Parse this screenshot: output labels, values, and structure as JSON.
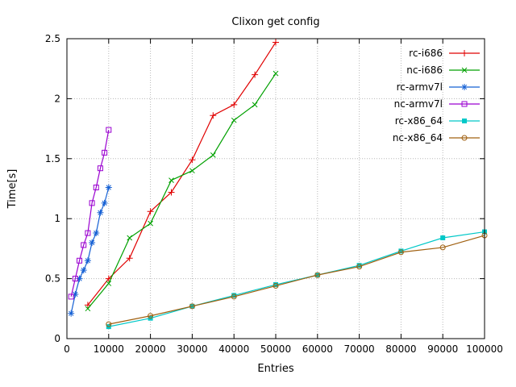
{
  "chart_data": {
    "type": "line",
    "title": "Clixon get config",
    "xlabel": "Entries",
    "ylabel": "Time[s]",
    "xlim": [
      0,
      100000
    ],
    "ylim": [
      0,
      2.5
    ],
    "xticks": [
      0,
      10000,
      20000,
      30000,
      40000,
      50000,
      60000,
      70000,
      80000,
      90000,
      100000
    ],
    "xtick_labels": [
      "0",
      "10000",
      "20000",
      "30000",
      "40000",
      "50000",
      "60000",
      "70000",
      "80000",
      "90000",
      "100000"
    ],
    "yticks": [
      0,
      0.5,
      1,
      1.5,
      2,
      2.5
    ],
    "ytick_labels": [
      "0",
      "0.5",
      "1",
      "1.5",
      "2",
      "2.5"
    ],
    "grid": true,
    "legend_position": "top-right-inside",
    "series": [
      {
        "name": "rc-i686",
        "color": "#e00000",
        "marker": "plus",
        "x": [
          5000,
          10000,
          15000,
          20000,
          25000,
          30000,
          35000,
          40000,
          45000,
          50000
        ],
        "y": [
          0.28,
          0.5,
          0.67,
          1.06,
          1.22,
          1.49,
          1.86,
          1.95,
          2.2,
          2.47
        ]
      },
      {
        "name": "nc-i686",
        "color": "#00a000",
        "marker": "cross",
        "x": [
          5000,
          10000,
          15000,
          20000,
          25000,
          30000,
          35000,
          40000,
          45000,
          50000
        ],
        "y": [
          0.25,
          0.46,
          0.84,
          0.96,
          1.32,
          1.4,
          1.53,
          1.82,
          1.95,
          2.21
        ]
      },
      {
        "name": "rc-armv7l",
        "color": "#1560d4",
        "marker": "asterisk",
        "x": [
          1000,
          2000,
          3000,
          4000,
          5000,
          6000,
          7000,
          8000,
          9000,
          10000
        ],
        "y": [
          0.21,
          0.37,
          0.5,
          0.57,
          0.65,
          0.8,
          0.88,
          1.05,
          1.13,
          1.26
        ]
      },
      {
        "name": "nc-armv7l",
        "color": "#9a00d0",
        "marker": "square-open",
        "x": [
          1000,
          2000,
          3000,
          4000,
          5000,
          6000,
          7000,
          8000,
          9000,
          10000
        ],
        "y": [
          0.35,
          0.5,
          0.65,
          0.78,
          0.88,
          1.13,
          1.26,
          1.42,
          1.55,
          1.74
        ]
      },
      {
        "name": "rc-x86_64",
        "color": "#00c8c8",
        "marker": "square-filled",
        "x": [
          10000,
          20000,
          30000,
          40000,
          50000,
          60000,
          70000,
          80000,
          90000,
          100000
        ],
        "y": [
          0.1,
          0.17,
          0.27,
          0.36,
          0.45,
          0.53,
          0.61,
          0.73,
          0.84,
          0.89
        ]
      },
      {
        "name": "nc-x86_64",
        "color": "#a06010",
        "marker": "circle-open",
        "x": [
          10000,
          20000,
          30000,
          40000,
          50000,
          60000,
          70000,
          80000,
          90000,
          100000
        ],
        "y": [
          0.12,
          0.19,
          0.27,
          0.35,
          0.44,
          0.53,
          0.6,
          0.72,
          0.76,
          0.86
        ]
      }
    ]
  }
}
